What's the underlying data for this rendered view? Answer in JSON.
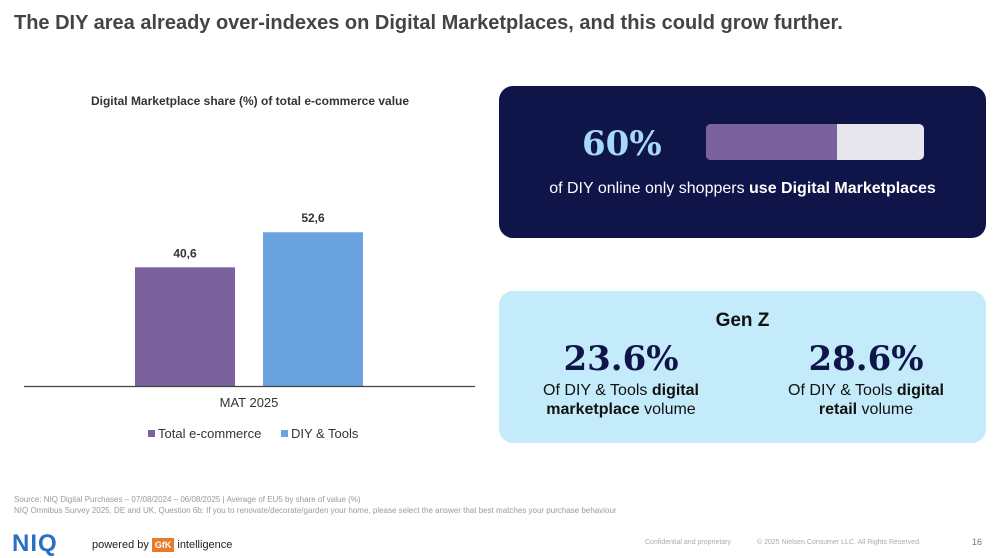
{
  "title": "The DIY area already over-indexes on Digital Marketplaces, and this could grow further.",
  "chart_data": {
    "type": "bar",
    "title": "Digital Marketplace share (%) of total e-commerce value",
    "categories": [
      "MAT 2025"
    ],
    "series": [
      {
        "name": "Total e-commerce",
        "values": [
          40.6
        ],
        "labels": [
          "40,6"
        ],
        "color": "#7b629c"
      },
      {
        "name": "DIY & Tools",
        "values": [
          52.6
        ],
        "labels": [
          "52,6"
        ],
        "color": "#6aa3e0"
      }
    ],
    "ylim": [
      0,
      65
    ],
    "grid": false,
    "legend_position": "bottom"
  },
  "stat_card": {
    "value": "60%",
    "progress": 0.6,
    "caption_prefix": "of DIY online only shoppers ",
    "caption_bold": "use Digital Marketplaces"
  },
  "genz_card": {
    "title": "Gen Z",
    "left": {
      "value": "23.6%",
      "cap_line1_plain": "Of DIY & Tools ",
      "cap_line1_bold": "digital",
      "cap_line2_bold": "marketplace",
      "cap_line2_plain": " volume"
    },
    "right": {
      "value": "28.6%",
      "cap_line1_plain": "Of DIY & Tools ",
      "cap_line1_bold": "digital",
      "cap_line2_bold": "retail",
      "cap_line2_plain": " volume"
    }
  },
  "source": {
    "line1": "Source: NIQ Digital Purchases – 07/08/2024 – 06/08/2025 | Average of EU5 by share of value (%)",
    "line2": "NIQ Omnibus Survey 2025, DE and UK, Question 6b: If you to renovate/decorate/garden your home, please select the answer that best matches your purchase behaviour"
  },
  "footer": {
    "logo": "NIQ",
    "powered_by": "powered by",
    "gfk": "GfK",
    "intelligence": "intelligence",
    "confidential": "Confidential and proprietary",
    "copyright": "© 2025 Nielsen Consumer LLC. All Rights Reserved.",
    "page": "16"
  },
  "colors": {
    "navy": "#0f1449",
    "light_blue": "#c3ebfa",
    "purple": "#7b629c",
    "blue": "#6aa3e0",
    "pct_blue": "#a6d9f7"
  }
}
